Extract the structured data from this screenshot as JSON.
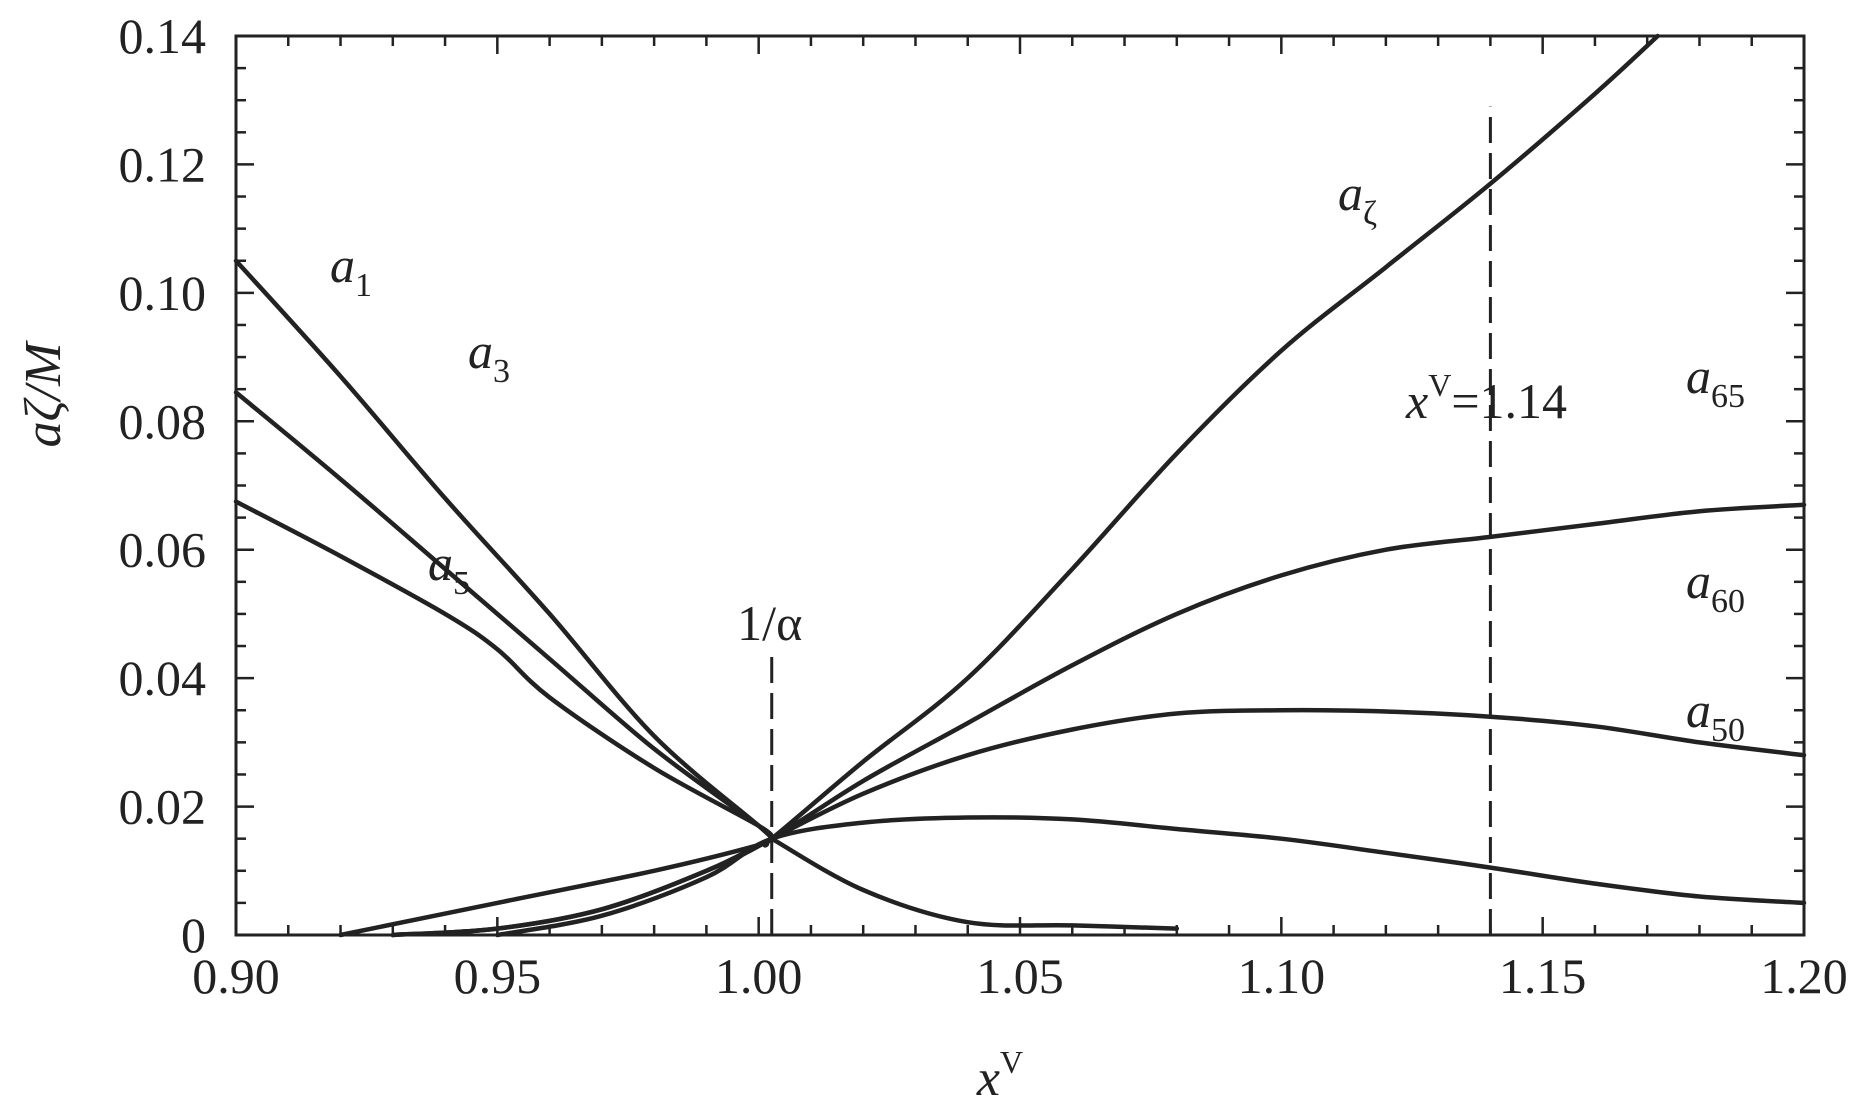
{
  "chart_data": {
    "type": "line",
    "xlabel": "x",
    "xlabel_sup": "V",
    "ylabel": "aζ/M",
    "xlim": [
      0.9,
      1.2
    ],
    "ylim": [
      0,
      0.14
    ],
    "x_ticks": [
      "0.90",
      "0.95",
      "1.00",
      "1.05",
      "1.10",
      "1.15",
      "1.20"
    ],
    "y_ticks": [
      "0",
      "0.02",
      "0.04",
      "0.06",
      "0.08",
      "0.10",
      "0.12",
      "0.14"
    ],
    "grid": false,
    "series": [
      {
        "name": "a1",
        "label_base": "a",
        "label_sub": "1",
        "x": [
          0.9,
          0.92,
          0.94,
          0.96,
          0.98,
          1.0,
          1.0025
        ],
        "y": [
          0.105,
          0.087,
          0.068,
          0.05,
          0.031,
          0.017,
          0.015
        ]
      },
      {
        "name": "a3",
        "label_base": "a",
        "label_sub": "3",
        "x": [
          0.9,
          0.92,
          0.94,
          0.96,
          0.98,
          1.0,
          1.0025
        ],
        "y": [
          0.0845,
          0.071,
          0.057,
          0.043,
          0.029,
          0.017,
          0.015
        ]
      },
      {
        "name": "a5",
        "label_base": "a",
        "label_sub": "5",
        "x": [
          0.9,
          0.92,
          0.94,
          0.95,
          0.96,
          0.98,
          1.0,
          1.0025
        ],
        "y": [
          0.0675,
          0.059,
          0.05,
          0.0445,
          0.037,
          0.026,
          0.017,
          0.015
        ]
      },
      {
        "name": "aζ",
        "label_base": "a",
        "label_sub": "ζ",
        "x": [
          0.92,
          0.95,
          0.98,
          1.0,
          1.0025,
          1.02,
          1.04,
          1.06,
          1.08,
          1.1,
          1.12,
          1.14,
          1.16,
          1.172
        ],
        "y": [
          0.0,
          0.005,
          0.01,
          0.014,
          0.015,
          0.027,
          0.04,
          0.057,
          0.075,
          0.091,
          0.104,
          0.117,
          0.131,
          0.14
        ]
      },
      {
        "name": "a65",
        "label_base": "a",
        "label_sub": "65",
        "x": [
          0.93,
          0.95,
          0.97,
          0.99,
          1.0025,
          1.02,
          1.04,
          1.06,
          1.08,
          1.1,
          1.12,
          1.14,
          1.16,
          1.18,
          1.2
        ],
        "y": [
          0.0,
          0.001,
          0.004,
          0.01,
          0.015,
          0.024,
          0.033,
          0.042,
          0.05,
          0.056,
          0.06,
          0.062,
          0.064,
          0.066,
          0.067
        ]
      },
      {
        "name": "a60",
        "label_base": "a",
        "label_sub": "60",
        "x": [
          0.93,
          0.95,
          0.97,
          0.99,
          1.0025,
          1.02,
          1.04,
          1.06,
          1.08,
          1.1,
          1.12,
          1.14,
          1.16,
          1.18,
          1.2
        ],
        "y": [
          0.0,
          0.001,
          0.004,
          0.01,
          0.015,
          0.022,
          0.028,
          0.032,
          0.0345,
          0.035,
          0.0348,
          0.034,
          0.0325,
          0.03,
          0.028
        ]
      },
      {
        "name": "a50",
        "label_base": "a",
        "label_sub": "50",
        "x": [
          0.95,
          0.97,
          0.99,
          1.0025,
          1.02,
          1.04,
          1.06,
          1.08,
          1.1,
          1.12,
          1.14,
          1.16,
          1.18,
          1.2
        ],
        "y": [
          0.0,
          0.003,
          0.009,
          0.015,
          0.0175,
          0.0183,
          0.018,
          0.0165,
          0.015,
          0.0128,
          0.0105,
          0.008,
          0.006,
          0.005
        ]
      },
      {
        "name": "tail",
        "label_base": "",
        "label_sub": "",
        "x": [
          1.0025,
          1.02,
          1.04,
          1.06,
          1.08
        ],
        "y": [
          0.015,
          0.007,
          0.002,
          0.0015,
          0.001
        ]
      }
    ],
    "reference_lines": [
      {
        "x": 1.0025,
        "y_top": 0.044,
        "label": "1/α"
      },
      {
        "x": 1.14,
        "y_top": 0.129,
        "label": "=1.14",
        "label_base": "x",
        "label_sup": "V"
      }
    ]
  }
}
